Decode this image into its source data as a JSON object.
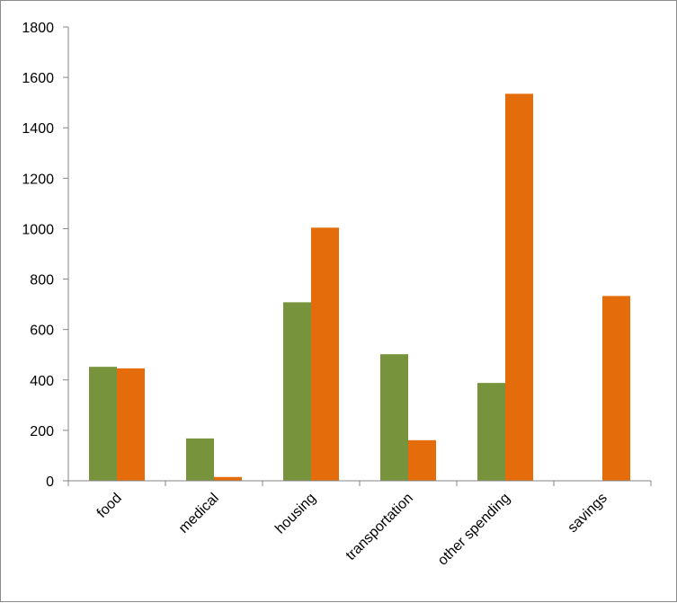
{
  "chart_data": {
    "type": "bar",
    "title": "",
    "xlabel": "",
    "ylabel": "",
    "categories": [
      "food",
      "medical",
      "housing",
      "transportation",
      "other spending",
      "savings"
    ],
    "series": [
      {
        "color": "#77933c",
        "values": [
          452,
          168,
          708,
          502,
          388,
          0
        ]
      },
      {
        "color": "#e46c0a",
        "values": [
          446,
          15,
          1004,
          161,
          1535,
          733
        ]
      }
    ],
    "ylim": [
      0,
      1800
    ],
    "yticks": [
      "0",
      "200",
      "400",
      "600",
      "800",
      "1000",
      "1200",
      "1400",
      "1600",
      "1800"
    ],
    "grid": false,
    "legend": "none"
  }
}
